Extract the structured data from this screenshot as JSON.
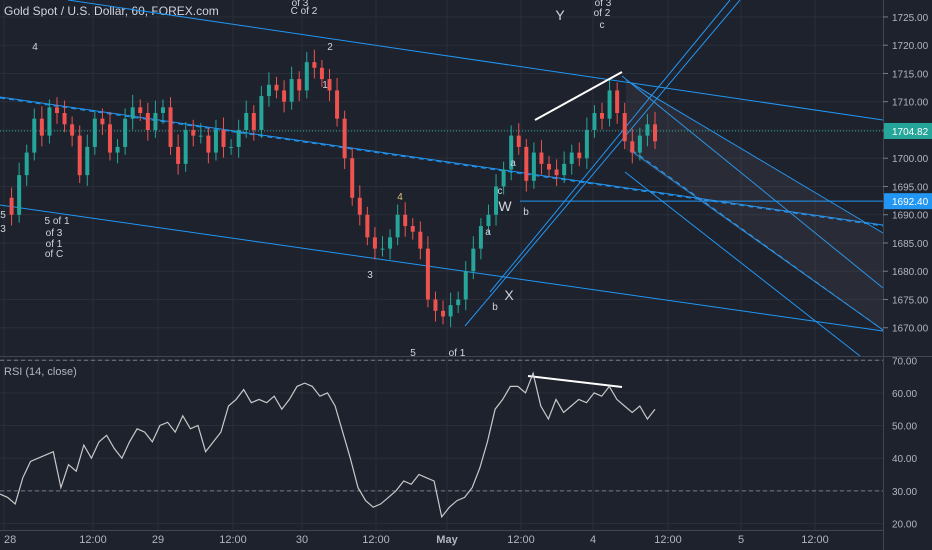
{
  "header": {
    "title": "Gold Spot / U.S. Dollar, 60, FOREX.com"
  },
  "rsi": {
    "title": "RSI (14, close)"
  },
  "colors": {
    "background": "#1e222d",
    "up": "#26a69a",
    "down": "#ef5350",
    "channel": "#2196f3",
    "text": "#d1d4dc",
    "price_line": "#26a69a"
  },
  "chart_data": [
    {
      "type": "candlestick",
      "title": "Gold Spot / U.S. Dollar, 60, FOREX.com",
      "ylim": [
        1665,
        1728
      ],
      "yticks": [
        1670,
        1675,
        1680,
        1685,
        1690,
        1695,
        1700,
        1705,
        1710,
        1715,
        1720,
        1725
      ],
      "ytick_labels": [
        "1670.00",
        "1675.00",
        "1680.00",
        "1685.00",
        "1690.00",
        "1695.00",
        "1700.00",
        "1705.00",
        "1710.00",
        "1715.00",
        "1720.00",
        "1725.00"
      ],
      "x_labels": [
        "28",
        "12:00",
        "29",
        "12:00",
        "30",
        "12:00",
        "May",
        "12:00",
        "4",
        "12:00",
        "5",
        "12:00"
      ],
      "price_labels": {
        "current": "1704.82",
        "level": "1692.40"
      },
      "current_price": 1704.82,
      "level_price": 1692.4,
      "close_path": [
        1693,
        1690,
        1697,
        1701,
        1707,
        1704,
        1709,
        1708,
        1706,
        1704,
        1697,
        1702,
        1707,
        1706,
        1701,
        1702,
        1707,
        1709,
        1708,
        1705,
        1708,
        1709,
        1702,
        1699,
        1705,
        1704,
        1704,
        1701,
        1705,
        1702,
        1702,
        1705,
        1708,
        1705,
        1711,
        1713,
        1712,
        1710,
        1714,
        1712,
        1717,
        1716,
        1714,
        1712,
        1707,
        1700,
        1693,
        1690,
        1686,
        1684,
        1684,
        1686,
        1690,
        1688,
        1687,
        1684,
        1675,
        1673,
        1672,
        1674,
        1675,
        1680,
        1684,
        1688,
        1690,
        1695,
        1698,
        1704,
        1702,
        1696,
        1701,
        1699,
        1698,
        1697,
        1699,
        1701,
        1700,
        1705,
        1708,
        1707,
        1712,
        1708,
        1703,
        1701,
        1704,
        1706,
        1703
      ],
      "annotations": [
        "4",
        "5",
        "3",
        "5 of 1",
        "of 3",
        "of 1",
        "of C",
        "of 3",
        "C of 2",
        "2",
        "1",
        "4",
        "3",
        "5",
        "of 1",
        "a",
        "b",
        "c",
        "W",
        "X",
        "Y",
        "a",
        "b",
        "of 3",
        "of 2",
        "c"
      ]
    },
    {
      "type": "line",
      "title": "RSI (14, close)",
      "ylim": [
        18,
        71
      ],
      "yticks": [
        20,
        30,
        40,
        50,
        60,
        70
      ],
      "ytick_labels": [
        "20.00",
        "30.00",
        "40.00",
        "50.00",
        "60.00",
        "70.00"
      ],
      "levels": [
        70,
        30
      ],
      "values": [
        29,
        28,
        26,
        34,
        39,
        40,
        41,
        42,
        31,
        38,
        36,
        44,
        40,
        45,
        47,
        43,
        40,
        45,
        49,
        48,
        45,
        50,
        51,
        48,
        53,
        49,
        50,
        42,
        45,
        48,
        56,
        58,
        61,
        57,
        58,
        57,
        59,
        55,
        58,
        62,
        63,
        62,
        59,
        60,
        56,
        48,
        40,
        31,
        27,
        25,
        26,
        28,
        30,
        33,
        32,
        35,
        34,
        33,
        22,
        25,
        27,
        28,
        31,
        37,
        45,
        55,
        58,
        62,
        62,
        60,
        66,
        56,
        52,
        58,
        54,
        56,
        58,
        57,
        60,
        59,
        62,
        58,
        56,
        54,
        56,
        52,
        55
      ],
      "trend_line": {
        "from": 66,
        "to": 63
      }
    }
  ]
}
